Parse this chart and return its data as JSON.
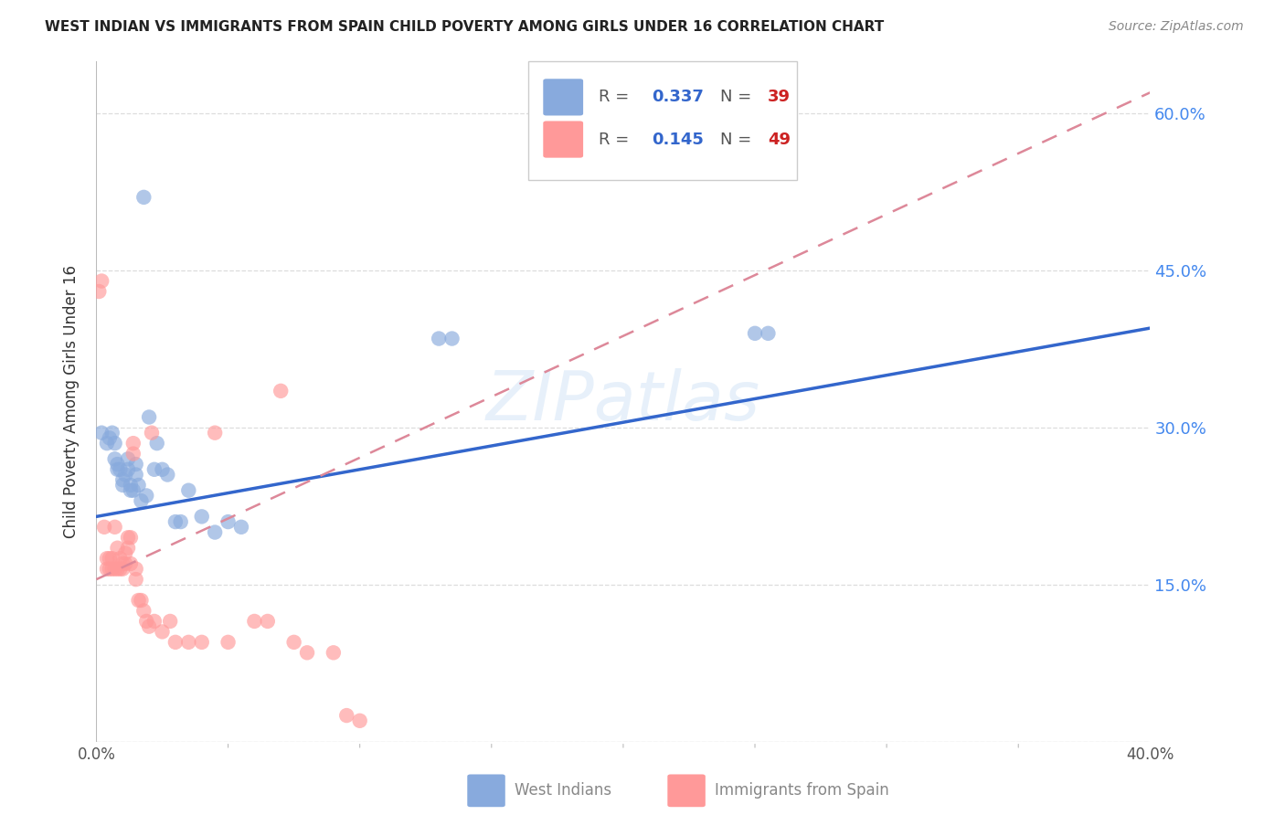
{
  "title": "WEST INDIAN VS IMMIGRANTS FROM SPAIN CHILD POVERTY AMONG GIRLS UNDER 16 CORRELATION CHART",
  "source": "Source: ZipAtlas.com",
  "ylabel": "Child Poverty Among Girls Under 16",
  "watermark": "ZIPatlas",
  "xlim": [
    0.0,
    0.4
  ],
  "ylim": [
    0.0,
    0.65
  ],
  "xticks": [
    0.0,
    0.05,
    0.1,
    0.15,
    0.2,
    0.25,
    0.3,
    0.35,
    0.4
  ],
  "yticks": [
    0.0,
    0.15,
    0.3,
    0.45,
    0.6
  ],
  "ytick_labels": [
    "",
    "15.0%",
    "30.0%",
    "45.0%",
    "60.0%"
  ],
  "color_blue": "#88AADD",
  "color_pink": "#FF9999",
  "color_trend_blue": "#3366CC",
  "color_trend_pink": "#DD8899",
  "color_grid": "#DDDDDD",
  "color_axis_right": "#4488EE",
  "R1": "0.337",
  "N1": "39",
  "R2": "0.145",
  "N2": "49",
  "series1_label": "West Indians",
  "series2_label": "Immigrants from Spain",
  "scatter1_x": [
    0.002,
    0.004,
    0.005,
    0.006,
    0.007,
    0.007,
    0.008,
    0.008,
    0.009,
    0.01,
    0.01,
    0.011,
    0.012,
    0.012,
    0.013,
    0.013,
    0.014,
    0.015,
    0.015,
    0.016,
    0.017,
    0.018,
    0.019,
    0.02,
    0.022,
    0.023,
    0.025,
    0.027,
    0.03,
    0.032,
    0.035,
    0.04,
    0.045,
    0.05,
    0.055,
    0.13,
    0.135,
    0.25,
    0.255
  ],
  "scatter1_y": [
    0.295,
    0.285,
    0.29,
    0.295,
    0.285,
    0.27,
    0.265,
    0.26,
    0.26,
    0.25,
    0.245,
    0.255,
    0.27,
    0.26,
    0.245,
    0.24,
    0.24,
    0.265,
    0.255,
    0.245,
    0.23,
    0.52,
    0.235,
    0.31,
    0.26,
    0.285,
    0.26,
    0.255,
    0.21,
    0.21,
    0.24,
    0.215,
    0.2,
    0.21,
    0.205,
    0.385,
    0.385,
    0.39,
    0.39
  ],
  "scatter2_x": [
    0.001,
    0.002,
    0.003,
    0.004,
    0.004,
    0.005,
    0.005,
    0.006,
    0.006,
    0.007,
    0.007,
    0.008,
    0.008,
    0.009,
    0.009,
    0.01,
    0.01,
    0.011,
    0.011,
    0.012,
    0.012,
    0.013,
    0.013,
    0.014,
    0.014,
    0.015,
    0.015,
    0.016,
    0.017,
    0.018,
    0.019,
    0.02,
    0.021,
    0.022,
    0.025,
    0.028,
    0.03,
    0.035,
    0.04,
    0.045,
    0.05,
    0.06,
    0.065,
    0.07,
    0.075,
    0.08,
    0.09,
    0.095,
    0.1
  ],
  "scatter2_y": [
    0.43,
    0.44,
    0.205,
    0.175,
    0.165,
    0.175,
    0.165,
    0.165,
    0.175,
    0.205,
    0.165,
    0.185,
    0.165,
    0.175,
    0.165,
    0.165,
    0.17,
    0.18,
    0.17,
    0.185,
    0.195,
    0.17,
    0.195,
    0.285,
    0.275,
    0.155,
    0.165,
    0.135,
    0.135,
    0.125,
    0.115,
    0.11,
    0.295,
    0.115,
    0.105,
    0.115,
    0.095,
    0.095,
    0.095,
    0.295,
    0.095,
    0.115,
    0.115,
    0.335,
    0.095,
    0.085,
    0.085,
    0.025,
    0.02
  ],
  "trend1_x0": 0.0,
  "trend1_y0": 0.215,
  "trend1_x1": 0.4,
  "trend1_y1": 0.395,
  "trend2_x0": 0.0,
  "trend2_y0": 0.155,
  "trend2_x1": 0.4,
  "trend2_y1": 0.62
}
